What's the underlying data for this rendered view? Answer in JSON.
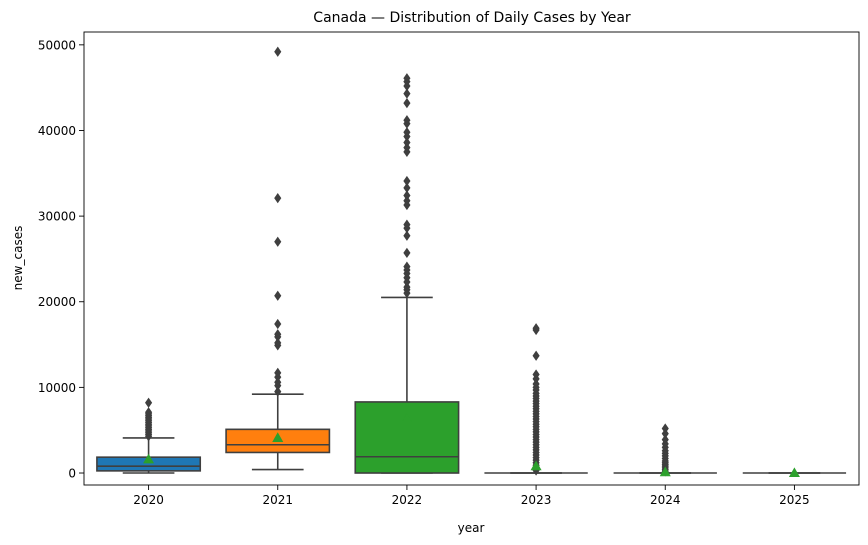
{
  "chart_data": {
    "type": "box",
    "title": "Canada — Distribution of Daily Cases by Year",
    "xlabel": "year",
    "ylabel": "new_cases",
    "ylim": [
      -1400,
      51500
    ],
    "yticks": [
      0,
      10000,
      20000,
      30000,
      40000,
      50000
    ],
    "ytick_labels": [
      "0",
      "10000",
      "20000",
      "30000",
      "40000",
      "50000"
    ],
    "grid": false,
    "legend": "none",
    "mean_marker_color": "#2ca02c",
    "outline_color": "#3f3f3f",
    "categories": [
      "2020",
      "2021",
      "2022",
      "2023",
      "2024",
      "2025"
    ],
    "boxes": [
      {
        "category": "2020",
        "color": "#1f77b4",
        "whisker_low": 0,
        "q1": 250,
        "median": 800,
        "q3": 1850,
        "whisker_high": 4100,
        "mean": 1600,
        "outliers": [
          4300,
          4500,
          4700,
          4900,
          5100,
          5300,
          5500,
          5700,
          5900,
          6100,
          6300,
          6500,
          6700,
          6900,
          7100,
          8200
        ]
      },
      {
        "category": "2021",
        "color": "#ff7f0e",
        "whisker_low": 400,
        "q1": 2400,
        "median": 3300,
        "q3": 5100,
        "whisker_high": 9200,
        "mean": 4100,
        "outliers": [
          9500,
          10200,
          10600,
          11200,
          11700,
          14900,
          15200,
          15900,
          16200,
          17400,
          20700,
          27000,
          32100,
          49200
        ]
      },
      {
        "category": "2022",
        "color": "#2ca02c",
        "whisker_low": 0,
        "q1": 0,
        "median": 1900,
        "q3": 8300,
        "whisker_high": 20500,
        "mean": 6400,
        "outliers": [
          21000,
          21400,
          21700,
          22300,
          22800,
          23300,
          23700,
          24100,
          25700,
          27700,
          28600,
          29000,
          31300,
          31800,
          32400,
          33300,
          34100,
          37500,
          38000,
          38600,
          39300,
          39800,
          40800,
          41200,
          43200,
          44300,
          45200,
          45700,
          46100
        ]
      },
      {
        "category": "2023",
        "color": "#d62728",
        "whisker_low": 0,
        "q1": 0,
        "median": 0,
        "q3": 0,
        "whisker_high": 0,
        "mean": 800,
        "outliers": [
          300,
          600,
          900,
          1200,
          1500,
          1800,
          2100,
          2400,
          2700,
          3000,
          3300,
          3600,
          3900,
          4200,
          4500,
          4800,
          5100,
          5400,
          5700,
          6000,
          6300,
          6600,
          6900,
          7200,
          7500,
          7800,
          8100,
          8400,
          8700,
          9000,
          9300,
          9700,
          10000,
          10400,
          11000,
          11500,
          13700,
          16700,
          16900
        ]
      },
      {
        "category": "2024",
        "color": "#9467bd",
        "whisker_low": 0,
        "q1": 0,
        "median": 0,
        "q3": 0,
        "whisker_high": 0,
        "mean": 100,
        "outliers": [
          200,
          400,
          600,
          800,
          1000,
          1200,
          1400,
          1700,
          2000,
          2300,
          2600,
          3000,
          3400,
          3900,
          4600,
          5200
        ]
      },
      {
        "category": "2025",
        "color": "#8c564b",
        "whisker_low": 0,
        "q1": 0,
        "median": 0,
        "q3": 0,
        "whisker_high": 0,
        "mean": 0,
        "outliers": []
      }
    ]
  }
}
